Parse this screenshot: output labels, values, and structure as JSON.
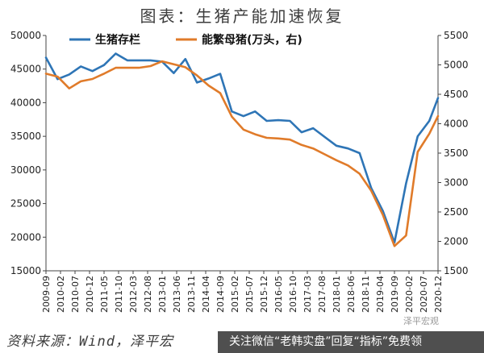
{
  "title": "图表：生猪产能加速恢复",
  "source": "资料来源：Wind，泽平宏",
  "watermark": "关注微信“老韩实盘”回复“指标”免费领",
  "watermark_tag": "泽平宏观",
  "chart_data": {
    "type": "line",
    "x": [
      "2009-09",
      "2010-01",
      "2010-05",
      "2010-09",
      "2011-01",
      "2011-05",
      "2011-09",
      "2012-01",
      "2012-05",
      "2012-09",
      "2013-01",
      "2013-05",
      "2013-09",
      "2014-01",
      "2014-05",
      "2014-09",
      "2015-01",
      "2015-05",
      "2015-09",
      "2016-01",
      "2016-05",
      "2016-09",
      "2017-01",
      "2017-05",
      "2017-09",
      "2018-01",
      "2018-05",
      "2018-09",
      "2019-01",
      "2019-05",
      "2019-09",
      "2020-01",
      "2020-05",
      "2020-09",
      "2020-12"
    ],
    "xticks": [
      "2009-09",
      "2010-02",
      "2010-07",
      "2010-12",
      "2011-05",
      "2011-10",
      "2012-03",
      "2012-08",
      "2013-01",
      "2013-06",
      "2013-11",
      "2014-04",
      "2014-09",
      "2015-02",
      "2015-07",
      "2015-12",
      "2016-05",
      "2016-10",
      "2017-03",
      "2017-08",
      "2018-01",
      "2018-06",
      "2018-11",
      "2019-04",
      "2019-09",
      "2020-02",
      "2020-07",
      "2020-12"
    ],
    "y_left_ticks": [
      15000,
      20000,
      25000,
      30000,
      35000,
      40000,
      45000,
      50000
    ],
    "y_right_ticks": [
      1500,
      2000,
      2500,
      3000,
      3500,
      4000,
      4500,
      5000,
      5500
    ],
    "y_left_range": [
      15000,
      50000
    ],
    "y_right_range": [
      1500,
      5500
    ],
    "grid": false,
    "legend_position": "top",
    "series": [
      {
        "name": "生猪存栏",
        "axis": "left",
        "color": "#2e75b6",
        "values": [
          46700,
          43500,
          44200,
          45400,
          44700,
          45600,
          47300,
          46300,
          46300,
          46300,
          46100,
          44400,
          46500,
          43000,
          43600,
          44300,
          38700,
          38000,
          38700,
          37300,
          37400,
          37300,
          35600,
          36200,
          34900,
          33600,
          33200,
          32500,
          27300,
          23900,
          19200,
          28000,
          35000,
          37300,
          40700
        ]
      },
      {
        "name": "能繁母猪(万头，右)",
        "axis": "right",
        "color": "#e07b2a",
        "values": [
          4850,
          4800,
          4600,
          4720,
          4760,
          4850,
          4950,
          4950,
          4950,
          4980,
          5060,
          5010,
          4960,
          4820,
          4650,
          4520,
          4120,
          3900,
          3820,
          3760,
          3750,
          3730,
          3640,
          3580,
          3480,
          3380,
          3290,
          3150,
          2860,
          2450,
          1920,
          2100,
          3520,
          3830,
          4130
        ]
      }
    ]
  }
}
